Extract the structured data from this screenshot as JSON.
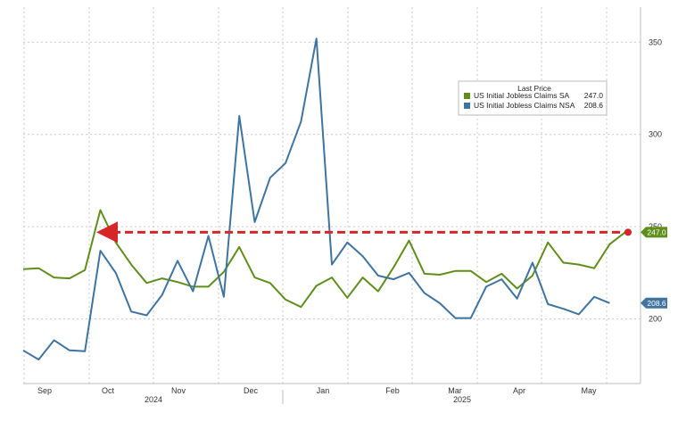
{
  "chart_data": {
    "type": "line",
    "legend": {
      "title": "Last Price",
      "placement": "top-right"
    },
    "series": [
      {
        "name": "US Initial Jobless Claims SA",
        "last_value_label": "247.0",
        "badge_label": "247.0",
        "color": "#5f8f1a",
        "values": [
          227.0,
          227.5,
          222.5,
          222.0,
          226.5,
          259.0,
          241.5,
          229.5,
          219.5,
          222.0,
          220.0,
          217.5,
          217.5,
          225.5,
          239.0,
          222.5,
          219.5,
          210.5,
          206.5,
          218.0,
          222.5,
          211.5,
          222.5,
          215.0,
          228.0,
          242.5,
          224.5,
          224.0,
          226.0,
          226.0,
          220.0,
          224.5,
          216.5,
          223.5,
          241.5,
          230.5,
          229.5,
          227.5,
          240.5,
          247.0
        ]
      },
      {
        "name": "US Initial Jobless Claims NSA",
        "last_value_label": "208.6",
        "badge_label": "208.6",
        "color": "#3f74a0",
        "values": [
          183.0,
          178.0,
          188.5,
          183.0,
          182.5,
          237.0,
          225.0,
          204.0,
          202.0,
          213.0,
          231.5,
          215.0,
          245.0,
          212.0,
          310.0,
          252.5,
          276.5,
          284.5,
          307.0,
          352.0,
          229.5,
          241.5,
          234.0,
          223.5,
          221.5,
          225.0,
          214.0,
          208.5,
          200.5,
          200.5,
          217.5,
          221.5,
          211.0,
          230.5,
          208.0,
          205.5,
          202.5,
          212.0,
          208.6
        ]
      }
    ],
    "y_ticks": [
      "200",
      "250",
      "300",
      "350"
    ],
    "ylim": [
      165,
      369
    ],
    "x_month_labels": [
      "Sep",
      "Oct",
      "Nov",
      "Dec",
      "Jan",
      "Feb",
      "Mar",
      "Apr",
      "May"
    ],
    "x_year_labels": [
      "2024",
      "2025"
    ],
    "reference_line": {
      "value": 247.0,
      "color": "#d62728",
      "style": "dashed",
      "arrow": "left"
    },
    "grid": true
  }
}
